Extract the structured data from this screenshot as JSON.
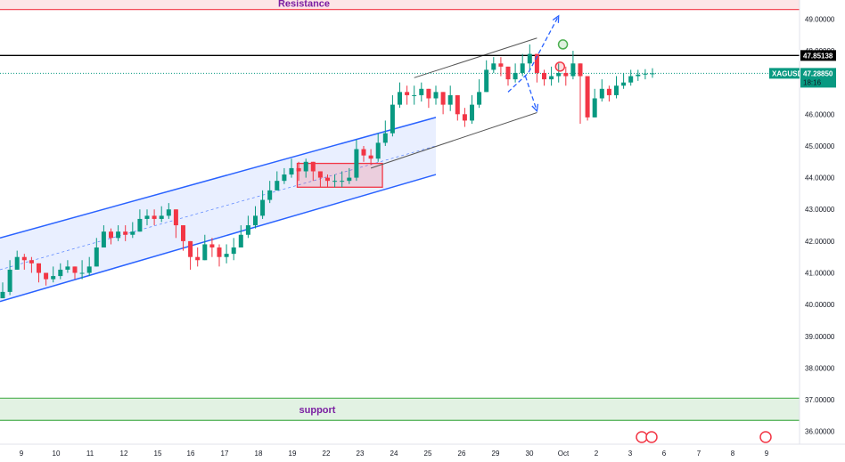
{
  "chart_data": {
    "type": "candlestick",
    "symbol": "XAGUSD",
    "y_axis": {
      "ylim": [
        35.6,
        49.6
      ],
      "ticks": [
        "36.00000",
        "37.00000",
        "38.00000",
        "39.00000",
        "40.00000",
        "41.00000",
        "42.00000",
        "43.00000",
        "44.00000",
        "45.00000",
        "46.00000",
        "47.00000",
        "48.00000",
        "49.00000"
      ],
      "tick_values": [
        36,
        37,
        38,
        39,
        40,
        41,
        42,
        43,
        44,
        45,
        46,
        47,
        48,
        49
      ]
    },
    "x_axis": {
      "ticks": [
        "9",
        "10",
        "11",
        "12",
        "15",
        "16",
        "17",
        "18",
        "19",
        "22",
        "23",
        "24",
        "25",
        "26",
        "29",
        "30",
        "Oct",
        "2",
        "3",
        "6",
        "7",
        "8",
        "9"
      ]
    },
    "resistance": {
      "label": "Resistance",
      "from": 49.3,
      "to": 49.7,
      "color": "#f23645"
    },
    "support": {
      "label": "support",
      "from": 36.35,
      "to": 37.05,
      "color": "#4caf50"
    },
    "horizontal_line": {
      "value": 47.85138,
      "label": "47.85138",
      "color": "#000000"
    },
    "current_price": {
      "symbol": "XAGUSD",
      "value": 47.2885,
      "label": "47.28850",
      "countdown": "18:16",
      "color": "#089981"
    },
    "series": [
      {
        "x": [
          0,
          0.5,
          1,
          1.5,
          2,
          2.5,
          3,
          3.5,
          4,
          4.5,
          5,
          5.5,
          6,
          6.5,
          7,
          7.5,
          8,
          8.5,
          9,
          9.5,
          10,
          10.5,
          11,
          11.5,
          12,
          12.5,
          13,
          13.5,
          14,
          14.5,
          15,
          15.5,
          16,
          16.5,
          17,
          17.5,
          18,
          18.5,
          19,
          19.5,
          20,
          20.5,
          21,
          21.5,
          22,
          22.5,
          23,
          23.5,
          24,
          24.5,
          25,
          25.5,
          26,
          26.5,
          27,
          27.5,
          28,
          28.5,
          29,
          29.5,
          30,
          30.5,
          31,
          31.5,
          32,
          32.5,
          33,
          33.5,
          34,
          34.5,
          35,
          35.5,
          36,
          36.5,
          37,
          37.5,
          38,
          38.5,
          39,
          39.5,
          40,
          40.5,
          41,
          41.5,
          42,
          42.5,
          43,
          43.5,
          44,
          44.5,
          45
        ],
        "close": [
          40.4,
          41.1,
          41.5,
          41.4,
          41.3,
          41.0,
          40.8,
          40.9,
          41.1,
          41.2,
          41.0,
          41.0,
          41.2,
          41.8,
          42.3,
          42.1,
          42.3,
          42.2,
          42.3,
          42.7,
          42.8,
          42.7,
          42.8,
          43.0,
          42.5,
          42.0,
          41.5,
          41.4,
          41.9,
          41.8,
          41.5,
          41.6,
          41.8,
          42.2,
          42.5,
          42.8,
          43.3,
          43.6,
          43.9,
          44.1,
          44.3,
          44.2,
          44.5,
          44.2,
          44.0,
          43.9,
          43.9,
          43.9,
          44.0,
          44.9,
          44.7,
          44.6,
          45.1,
          45.4,
          46.3,
          46.7,
          46.6,
          46.6,
          46.8,
          46.5,
          46.7,
          46.3,
          46.6,
          46.0,
          45.8,
          46.3,
          46.7,
          47.4,
          47.6,
          47.5,
          47.1,
          47.3,
          47.6,
          47.9,
          47.3,
          47.1,
          47.2,
          47.3,
          47.2,
          47.6,
          47.2,
          45.9,
          46.5,
          46.8,
          46.6,
          46.9,
          47.0,
          47.2,
          47.25,
          47.28,
          47.2885
        ],
        "high": [
          40.7,
          41.4,
          41.7,
          41.6,
          41.5,
          41.3,
          41.0,
          41.2,
          41.3,
          41.4,
          41.2,
          41.4,
          41.5,
          42.1,
          42.5,
          42.4,
          42.5,
          42.5,
          42.6,
          43.0,
          43.0,
          43.0,
          43.1,
          43.2,
          42.9,
          42.3,
          41.9,
          41.8,
          42.2,
          42.1,
          41.9,
          41.9,
          42.1,
          42.5,
          42.8,
          43.1,
          43.6,
          43.9,
          44.2,
          44.3,
          44.6,
          44.5,
          44.6,
          44.5,
          44.2,
          44.1,
          44.1,
          44.2,
          44.3,
          45.2,
          45.0,
          44.9,
          45.4,
          45.8,
          46.6,
          47.0,
          46.9,
          46.9,
          47.0,
          46.8,
          46.9,
          46.6,
          46.9,
          46.3,
          46.2,
          46.6,
          47.1,
          47.7,
          47.8,
          47.8,
          47.4,
          47.6,
          47.9,
          48.2,
          47.7,
          47.4,
          47.5,
          47.6,
          47.5,
          48.0,
          47.6,
          46.3,
          46.8,
          47.1,
          46.9,
          47.2,
          47.3,
          47.4,
          47.4,
          47.42,
          47.45
        ],
        "low": [
          40.2,
          40.3,
          41.2,
          41.1,
          41.0,
          40.7,
          40.6,
          40.7,
          40.8,
          41.0,
          40.8,
          40.8,
          40.9,
          41.2,
          41.8,
          41.9,
          42.0,
          42.0,
          42.1,
          42.3,
          42.5,
          42.5,
          42.6,
          42.7,
          42.1,
          41.7,
          41.1,
          41.2,
          41.4,
          41.5,
          41.2,
          41.3,
          41.4,
          41.8,
          42.1,
          42.4,
          42.7,
          43.2,
          43.6,
          43.8,
          44.0,
          43.9,
          44.0,
          43.9,
          43.7,
          43.7,
          43.7,
          43.7,
          43.8,
          43.9,
          44.5,
          44.4,
          44.5,
          45.0,
          45.3,
          46.2,
          46.3,
          46.3,
          46.4,
          46.2,
          46.3,
          46.0,
          46.1,
          45.8,
          45.6,
          45.7,
          46.2,
          46.7,
          47.3,
          47.2,
          46.9,
          47.0,
          47.2,
          47.4,
          47.0,
          46.9,
          46.9,
          47.0,
          46.9,
          47.1,
          45.7,
          45.8,
          45.9,
          46.4,
          46.4,
          46.5,
          46.8,
          46.9,
          47.05,
          47.1,
          47.15
        ]
      }
    ],
    "grid": false,
    "annotations": {
      "ascending_channel": {
        "upper": [
          [
            0,
            42.1
          ],
          [
            30,
            45.9
          ]
        ],
        "lower": [
          [
            0,
            40.1
          ],
          [
            30,
            44.1
          ]
        ],
        "mid": [
          [
            0,
            41.1
          ],
          [
            30,
            45.0
          ]
        ]
      },
      "consolidation_box": [
        [
          20.4,
          43.7
        ],
        [
          26.3,
          44.45
        ]
      ],
      "upper_channel": {
        "upper": [
          [
            28.5,
            47.15
          ],
          [
            37.0,
            48.4
          ]
        ],
        "lower": [
          [
            25.5,
            44.3
          ],
          [
            37.0,
            46.05
          ]
        ]
      },
      "projection_up": [
        [
          35.0,
          46.7
        ],
        [
          36.4,
          47.3
        ],
        [
          38.5,
          49.1
        ]
      ],
      "projection_down": [
        [
          36.2,
          47.2
        ],
        [
          37.0,
          46.1
        ]
      ],
      "circle_green": {
        "x": 38.8,
        "y": 48.2,
        "color": "#4caf50"
      },
      "circle_red": {
        "x": 38.6,
        "y": 47.5,
        "color": "#f23645"
      }
    }
  }
}
